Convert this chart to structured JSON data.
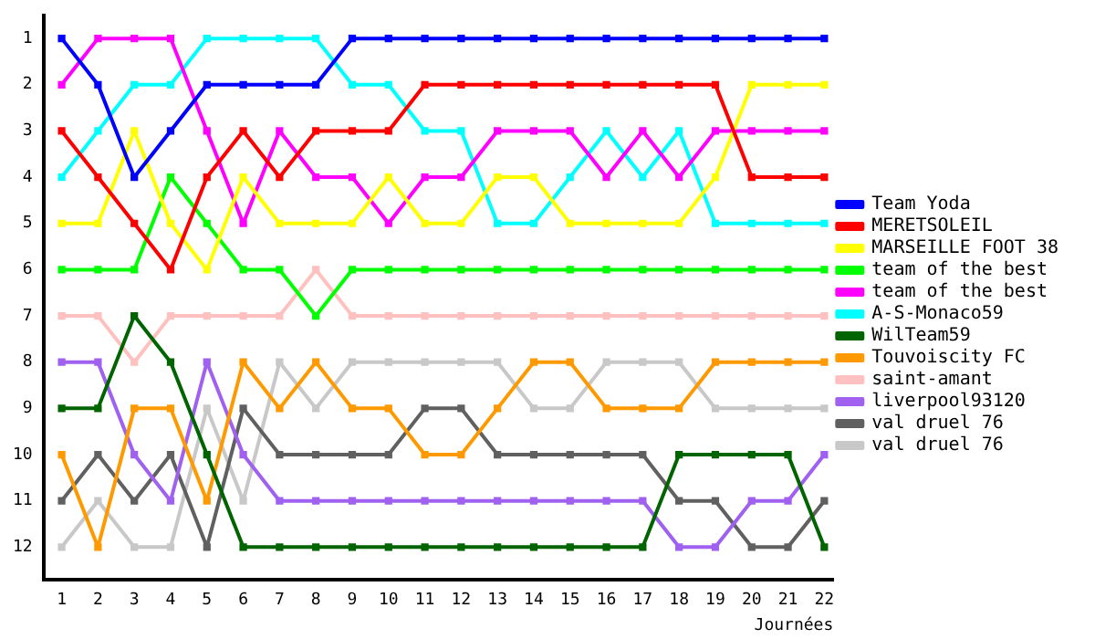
{
  "chart_data": {
    "type": "line",
    "xlabel": "Journées",
    "x": [
      1,
      2,
      3,
      4,
      5,
      6,
      7,
      8,
      9,
      10,
      11,
      12,
      13,
      14,
      15,
      16,
      17,
      18,
      19,
      20,
      21,
      22
    ],
    "xlim": [
      0.5,
      22.25
    ],
    "xticks": [
      1,
      2,
      3,
      4,
      5,
      6,
      7,
      8,
      9,
      10,
      11,
      12,
      13,
      14,
      15,
      16,
      17,
      18,
      19,
      20,
      21,
      22
    ],
    "ylim": [
      12.7,
      0.5
    ],
    "yticks": [
      1,
      2,
      3,
      4,
      5,
      6,
      7,
      8,
      9,
      10,
      11,
      12
    ],
    "grid": false,
    "legend": "right",
    "marker": "square",
    "line_style": "solid",
    "series": [
      {
        "name": "Team Yoda",
        "color": "#0000ff",
        "values": [
          1,
          2,
          4,
          3,
          2,
          2,
          2,
          2,
          1,
          1,
          1,
          1,
          1,
          1,
          1,
          1,
          1,
          1,
          1,
          1,
          1,
          1
        ]
      },
      {
        "name": "MERETSOLEIL",
        "color": "#ff0000",
        "values": [
          3,
          4,
          5,
          6,
          4,
          3,
          4,
          3,
          3,
          3,
          2,
          2,
          2,
          2,
          2,
          2,
          2,
          2,
          2,
          4,
          4,
          4
        ]
      },
      {
        "name": "MARSEILLE FOOT 38",
        "color": "#ffff00",
        "values": [
          5,
          5,
          3,
          5,
          6,
          4,
          5,
          5,
          5,
          4,
          5,
          5,
          4,
          4,
          5,
          5,
          5,
          5,
          4,
          2,
          2,
          2
        ]
      },
      {
        "name": "team of the best",
        "color": "#00ff00",
        "values": [
          6,
          6,
          6,
          4,
          5,
          6,
          6,
          7,
          6,
          6,
          6,
          6,
          6,
          6,
          6,
          6,
          6,
          6,
          6,
          6,
          6,
          6
        ]
      },
      {
        "name": "team of the best",
        "color": "#ff00ff",
        "values": [
          2,
          1,
          1,
          1,
          3,
          5,
          3,
          4,
          4,
          5,
          4,
          4,
          3,
          3,
          3,
          4,
          3,
          4,
          3,
          3,
          3,
          3
        ]
      },
      {
        "name": "A-S-Monaco59",
        "color": "#00ffff",
        "values": [
          4,
          3,
          2,
          2,
          1,
          1,
          1,
          1,
          2,
          2,
          3,
          3,
          5,
          5,
          4,
          3,
          4,
          3,
          5,
          5,
          5,
          5
        ]
      },
      {
        "name": "WilTeam59",
        "color": "#006400",
        "values": [
          9,
          9,
          7,
          8,
          10,
          12,
          12,
          12,
          12,
          12,
          12,
          12,
          12,
          12,
          12,
          12,
          12,
          10,
          10,
          10,
          10,
          12
        ]
      },
      {
        "name": "Touvoiscity FC",
        "color": "#ff9900",
        "values": [
          10,
          12,
          9,
          9,
          11,
          8,
          9,
          8,
          9,
          9,
          10,
          10,
          9,
          8,
          8,
          9,
          9,
          9,
          8,
          8,
          8,
          8
        ]
      },
      {
        "name": "saint-amant",
        "color": "#ffc0c0",
        "values": [
          7,
          7,
          8,
          7,
          7,
          7,
          7,
          6,
          7,
          7,
          7,
          7,
          7,
          7,
          7,
          7,
          7,
          7,
          7,
          7,
          7,
          7
        ]
      },
      {
        "name": "liverpool93120",
        "color": "#a060f0",
        "values": [
          8,
          8,
          10,
          11,
          8,
          10,
          11,
          11,
          11,
          11,
          11,
          11,
          11,
          11,
          11,
          11,
          11,
          12,
          12,
          11,
          11,
          10
        ]
      },
      {
        "name": "val druel 76",
        "color": "#606060",
        "values": [
          11,
          10,
          11,
          10,
          12,
          9,
          10,
          10,
          10,
          10,
          9,
          9,
          10,
          10,
          10,
          10,
          10,
          11,
          11,
          12,
          12,
          11
        ]
      },
      {
        "name": "val druel 76",
        "color": "#c8c8c8",
        "values": [
          12,
          11,
          12,
          12,
          9,
          11,
          8,
          9,
          8,
          8,
          8,
          8,
          8,
          9,
          9,
          8,
          8,
          8,
          9,
          9,
          9,
          9
        ]
      }
    ]
  }
}
